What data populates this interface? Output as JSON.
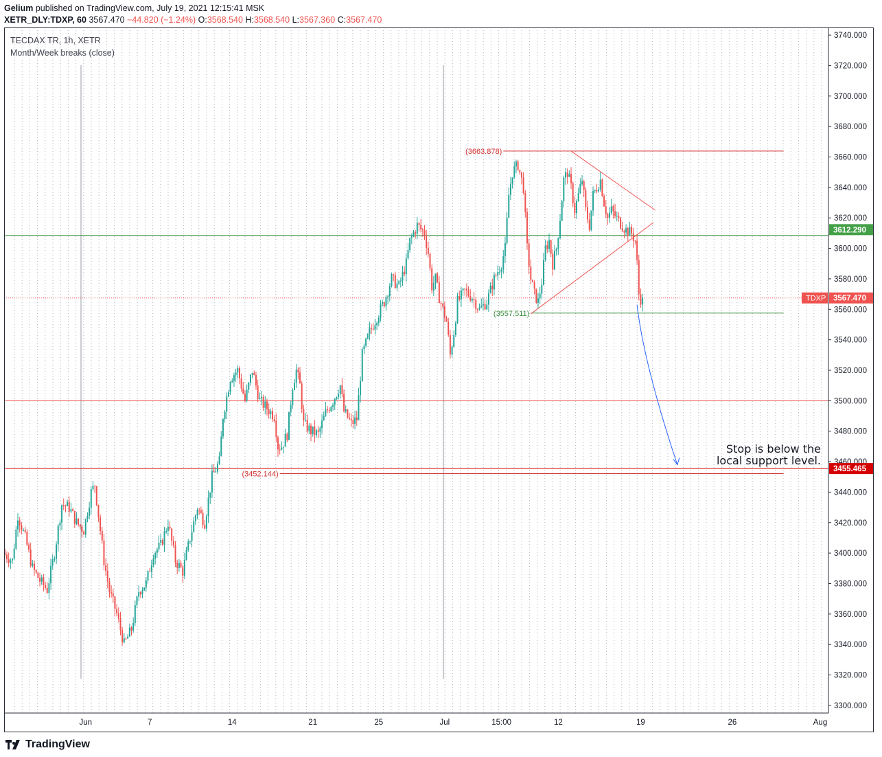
{
  "header": {
    "author": "Gelium",
    "published": "published on TradingView.com, July 19, 2021 12:15:41 MSK",
    "symbol": "XETR_DLY:TDXP, 60",
    "last": "3567.470",
    "change": "−44.820 (−1.24%)",
    "o_label": "O:",
    "o": "3568.540",
    "h_label": "H:",
    "h": "3568.540",
    "l_label": "L:",
    "l": "3567.360",
    "c_label": "C:",
    "c": "3567.470"
  },
  "legend": {
    "series": "TECDAX TR, 1h, XETR",
    "indicator": "Month/Week breaks (close)"
  },
  "annotation": {
    "line1": "Stop is below the",
    "line2": "local support level."
  },
  "footer": {
    "brand": "TradingView"
  },
  "colors": {
    "up": "#26a69a",
    "down": "#ef5350",
    "support": "#388e3c",
    "resistance": "#d32f2f",
    "arrow": "#2962ff",
    "grid": "#b2b5be"
  },
  "chart_data": {
    "type": "candlestick",
    "ylim": [
      3295,
      3745
    ],
    "y_ticks": [
      "3740.000",
      "3720.000",
      "3700.000",
      "3680.000",
      "3660.000",
      "3640.000",
      "3620.000",
      "3600.000",
      "3580.000",
      "3560.000",
      "3540.000",
      "3520.000",
      "3500.000",
      "3480.000",
      "3460.000",
      "3440.000",
      "3420.000",
      "3400.000",
      "3380.000",
      "3360.000",
      "3340.000",
      "3320.000",
      "3300.000"
    ],
    "x_ticks": [
      {
        "label": "Jun",
        "index": 44
      },
      {
        "label": "7",
        "index": 79
      },
      {
        "label": "14",
        "index": 124
      },
      {
        "label": "21",
        "index": 168
      },
      {
        "label": "25",
        "index": 204
      },
      {
        "label": "Jul",
        "index": 240
      },
      {
        "label": "15:00",
        "index": 271
      },
      {
        "label": "12",
        "index": 302
      },
      {
        "label": "19",
        "index": 347
      },
      {
        "label": "26",
        "index": 397
      },
      {
        "label": "Aug",
        "index": 445
      }
    ],
    "price_labels": [
      {
        "text": "3612.290",
        "value": 3612.29,
        "color": "#43a047"
      },
      {
        "text": "3567.470",
        "value": 3567.47,
        "color": "#ef5350",
        "tag": "TDXP"
      },
      {
        "text": "3455.465",
        "value": 3455.465,
        "color": "#d50000"
      }
    ],
    "levels": [
      {
        "value": 3663.878,
        "label": "(3663.878)",
        "color": "#d32f2f",
        "from": 272,
        "to": 425
      },
      {
        "value": 3557.511,
        "label": "(3557.511)",
        "color": "#388e3c",
        "from": 287,
        "to": 425
      },
      {
        "value": 3452.144,
        "label": "(3452.144)",
        "color": "#d32f2f",
        "from": 150,
        "to": 425
      },
      {
        "value": 3608.5,
        "label": "",
        "color": "#388e3c",
        "from": 0,
        "to": 450
      },
      {
        "value": 3500,
        "label": "",
        "color": "#ef5350",
        "from": 0,
        "to": 450
      },
      {
        "value": 3455.465,
        "label": "",
        "color": "#d50000",
        "from": 0,
        "to": 450
      }
    ],
    "triangle": [
      {
        "from": [
          309,
          3663.878
        ],
        "to": [
          355,
          3625
        ]
      },
      {
        "from": [
          287,
          3557
        ],
        "to": [
          354,
          3617
        ]
      }
    ],
    "projection_arrow": {
      "from": [
        345,
        3563
      ],
      "to": [
        367,
        3458
      ]
    },
    "path": [
      [
        0,
        3400
      ],
      [
        5,
        3395
      ],
      [
        8,
        3425
      ],
      [
        12,
        3410
      ],
      [
        16,
        3390
      ],
      [
        20,
        3382
      ],
      [
        24,
        3376
      ],
      [
        28,
        3400
      ],
      [
        32,
        3432
      ],
      [
        36,
        3430
      ],
      [
        40,
        3420
      ],
      [
        44,
        3415
      ],
      [
        48,
        3440
      ],
      [
        50,
        3445
      ],
      [
        52,
        3425
      ],
      [
        55,
        3395
      ],
      [
        58,
        3375
      ],
      [
        62,
        3360
      ],
      [
        66,
        3340
      ],
      [
        70,
        3350
      ],
      [
        74,
        3375
      ],
      [
        78,
        3380
      ],
      [
        82,
        3400
      ],
      [
        86,
        3405
      ],
      [
        90,
        3420
      ],
      [
        94,
        3395
      ],
      [
        98,
        3388
      ],
      [
        102,
        3410
      ],
      [
        106,
        3430
      ],
      [
        110,
        3420
      ],
      [
        114,
        3450
      ],
      [
        118,
        3460
      ],
      [
        120,
        3490
      ],
      [
        124,
        3515
      ],
      [
        128,
        3520
      ],
      [
        132,
        3500
      ],
      [
        136,
        3520
      ],
      [
        140,
        3500
      ],
      [
        144,
        3495
      ],
      [
        148,
        3490
      ],
      [
        150,
        3470
      ],
      [
        152,
        3470
      ],
      [
        155,
        3478
      ],
      [
        158,
        3510
      ],
      [
        160,
        3520
      ],
      [
        162,
        3510
      ],
      [
        164,
        3485
      ],
      [
        168,
        3480
      ],
      [
        172,
        3478
      ],
      [
        176,
        3492
      ],
      [
        180,
        3500
      ],
      [
        184,
        3510
      ],
      [
        186,
        3493
      ],
      [
        190,
        3485
      ],
      [
        193,
        3488
      ],
      [
        196,
        3530
      ],
      [
        200,
        3545
      ],
      [
        204,
        3555
      ],
      [
        208,
        3565
      ],
      [
        212,
        3580
      ],
      [
        216,
        3575
      ],
      [
        220,
        3590
      ],
      [
        222,
        3605
      ],
      [
        226,
        3615
      ],
      [
        230,
        3610
      ],
      [
        232,
        3597
      ],
      [
        234,
        3575
      ],
      [
        236,
        3580
      ],
      [
        238,
        3568
      ],
      [
        242,
        3552
      ],
      [
        244,
        3530
      ],
      [
        246,
        3545
      ],
      [
        248,
        3565
      ],
      [
        252,
        3572
      ],
      [
        256,
        3568
      ],
      [
        260,
        3560
      ],
      [
        264,
        3565
      ],
      [
        268,
        3580
      ],
      [
        272,
        3590
      ],
      [
        274,
        3600
      ],
      [
        276,
        3635
      ],
      [
        278,
        3650
      ],
      [
        281,
        3655
      ],
      [
        284,
        3640
      ],
      [
        286,
        3600
      ],
      [
        288,
        3580
      ],
      [
        290,
        3570
      ],
      [
        292,
        3565
      ],
      [
        294,
        3578
      ],
      [
        296,
        3600
      ],
      [
        298,
        3605
      ],
      [
        300,
        3590
      ],
      [
        302,
        3600
      ],
      [
        304,
        3620
      ],
      [
        306,
        3645
      ],
      [
        308,
        3650
      ],
      [
        310,
        3640
      ],
      [
        312,
        3625
      ],
      [
        314,
        3635
      ],
      [
        316,
        3645
      ],
      [
        318,
        3625
      ],
      [
        320,
        3615
      ],
      [
        322,
        3635
      ],
      [
        326,
        3645
      ],
      [
        328,
        3630
      ],
      [
        330,
        3620
      ],
      [
        332,
        3625
      ],
      [
        336,
        3618
      ],
      [
        340,
        3612
      ],
      [
        343,
        3610
      ],
      [
        345,
        3605
      ],
      [
        346,
        3590
      ],
      [
        347,
        3570
      ],
      [
        348,
        3567
      ]
    ]
  }
}
